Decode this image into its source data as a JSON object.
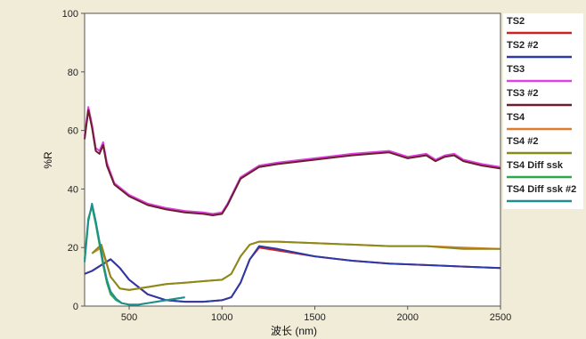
{
  "chart_data": {
    "type": "line",
    "xlabel": "波长 (nm)",
    "ylabel": "%R",
    "xlim": [
      260,
      2500
    ],
    "ylim": [
      0,
      100
    ],
    "xticks": [
      500,
      1000,
      1500,
      2000,
      2500
    ],
    "yticks": [
      0,
      20,
      40,
      60,
      80,
      100
    ],
    "legend_position": "right",
    "series": [
      {
        "name": "TS2",
        "color": "#cc2222",
        "x": [
          260,
          300,
          350,
          400,
          450,
          500,
          600,
          700,
          800,
          900,
          1000,
          1050,
          1100,
          1150,
          1200,
          1300,
          1500,
          1700,
          1900,
          2100,
          2300,
          2500
        ],
        "y": [
          11,
          12,
          14,
          16,
          13,
          9,
          4,
          2,
          1.5,
          1.5,
          2,
          3,
          8,
          16,
          20,
          19,
          17,
          15.5,
          14.5,
          14,
          13.5,
          13
        ]
      },
      {
        "name": "TS2 #2",
        "color": "#2a3aa8",
        "x": [
          260,
          300,
          350,
          400,
          450,
          500,
          600,
          700,
          800,
          900,
          1000,
          1050,
          1100,
          1150,
          1200,
          1300,
          1500,
          1700,
          1900,
          2100,
          2300,
          2500
        ],
        "y": [
          11,
          12,
          14,
          16,
          13,
          9,
          4,
          2,
          1.5,
          1.5,
          2,
          3,
          8,
          16,
          20.5,
          19.5,
          17,
          15.5,
          14.5,
          14,
          13.5,
          13
        ]
      },
      {
        "name": "TS3",
        "color": "#e040e0",
        "x": [
          260,
          280,
          300,
          320,
          340,
          360,
          380,
          420,
          500,
          600,
          700,
          800,
          900,
          950,
          1000,
          1030,
          1100,
          1200,
          1300,
          1500,
          1700,
          1800,
          1900,
          2000,
          2100,
          2150,
          2200,
          2250,
          2300,
          2400,
          2500
        ],
        "y": [
          58,
          68,
          62,
          54,
          53,
          56,
          49,
          42,
          38,
          35,
          33.5,
          32.5,
          32,
          31.5,
          32,
          35,
          44,
          48,
          49,
          50.5,
          52,
          52.5,
          53,
          51,
          52,
          50,
          51.5,
          52,
          50,
          48.5,
          47.5
        ]
      },
      {
        "name": "TS3 #2",
        "color": "#6a1f2e",
        "x": [
          260,
          280,
          300,
          320,
          340,
          360,
          380,
          420,
          500,
          600,
          700,
          800,
          900,
          950,
          1000,
          1030,
          1100,
          1200,
          1300,
          1500,
          1700,
          1800,
          1900,
          2000,
          2100,
          2150,
          2200,
          2250,
          2300,
          2400,
          2500
        ],
        "y": [
          57,
          67,
          61,
          53,
          52,
          55,
          48,
          41.5,
          37.5,
          34.5,
          33,
          32,
          31.5,
          31,
          31.5,
          34.5,
          43.5,
          47.5,
          48.5,
          50,
          51.5,
          52,
          52.5,
          50.5,
          51.5,
          49.5,
          51,
          51.5,
          49.5,
          48,
          47
        ]
      },
      {
        "name": "TS4",
        "color": "#e07d2a",
        "x": [
          300,
          350,
          400,
          450,
          500,
          600,
          700,
          800,
          900,
          1000,
          1050,
          1100,
          1150,
          1200,
          1300,
          1500,
          1700,
          1900,
          2100,
          2300,
          2500
        ],
        "y": [
          18,
          20,
          10,
          6,
          5.5,
          6.5,
          7.5,
          8,
          8.5,
          9,
          11,
          17,
          21,
          22,
          22,
          21.5,
          21,
          20.5,
          20.5,
          20,
          19.5
        ]
      },
      {
        "name": "TS4 #2",
        "color": "#8a8a1a",
        "x": [
          300,
          350,
          400,
          450,
          500,
          600,
          700,
          800,
          900,
          1000,
          1050,
          1100,
          1150,
          1200,
          1300,
          1500,
          1700,
          1900,
          2100,
          2200,
          2300,
          2500
        ],
        "y": [
          18,
          21,
          10,
          6,
          5.5,
          6.5,
          7.5,
          8,
          8.5,
          9,
          11,
          17,
          21,
          22,
          22,
          21.5,
          21,
          20.5,
          20.5,
          20,
          19.5,
          19.5
        ]
      },
      {
        "name": "TS4 Diff ssk",
        "color": "#2fa84a",
        "x": [
          260,
          280,
          300,
          320,
          340,
          360,
          380,
          400,
          430,
          460,
          500,
          550,
          600,
          700,
          800
        ],
        "y": [
          16,
          30,
          34,
          28,
          21,
          14,
          8,
          4,
          2,
          1,
          0.5,
          0.5,
          1,
          2,
          3
        ]
      },
      {
        "name": "TS4 Diff ssk #2",
        "color": "#1e8e8e",
        "x": [
          260,
          280,
          300,
          320,
          340,
          360,
          380,
          400,
          430,
          460,
          500,
          550,
          600,
          700,
          800
        ],
        "y": [
          15,
          29,
          35,
          29,
          22,
          15,
          9,
          5,
          2.5,
          1,
          0.5,
          0.5,
          1,
          2,
          3
        ]
      }
    ]
  }
}
